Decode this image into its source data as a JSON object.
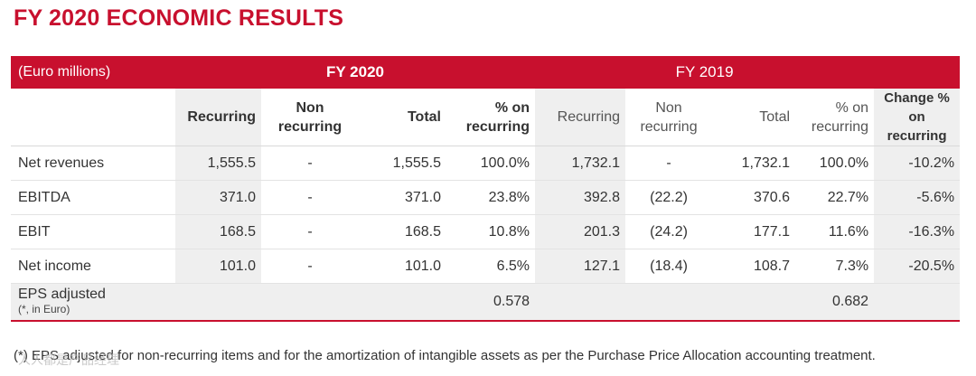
{
  "title": "FY 2020 ECONOMIC RESULTS",
  "table": {
    "unit_label": "(Euro millions)",
    "period_2020": "FY 2020",
    "period_2019": "FY 2019",
    "columns": {
      "recurring": "Recurring",
      "non_line1": "Non",
      "non_line2": "recurring",
      "total": "Total",
      "pct_line1": "% on",
      "pct_line2": "recurring",
      "chg_line1": "Change %",
      "chg_line2": "on",
      "chg_line3": "recurring"
    },
    "rows": [
      {
        "label": "Net revenues",
        "r20": "1,555.5",
        "n20": "-",
        "t20": "1,555.5",
        "p20": "100.0%",
        "r19": "1,732.1",
        "n19": "-",
        "t19": "1,732.1",
        "p19": "100.0%",
        "chg": "-10.2%"
      },
      {
        "label": "EBITDA",
        "r20": "371.0",
        "n20": "-",
        "t20": "371.0",
        "p20": "23.8%",
        "r19": "392.8",
        "n19": "(22.2)",
        "t19": "370.6",
        "p19": "22.7%",
        "chg": "-5.6%"
      },
      {
        "label": "EBIT",
        "r20": "168.5",
        "n20": "-",
        "t20": "168.5",
        "p20": "10.8%",
        "r19": "201.3",
        "n19": "(24.2)",
        "t19": "177.1",
        "p19": "11.6%",
        "chg": "-16.3%"
      },
      {
        "label": "Net income",
        "r20": "101.0",
        "n20": "-",
        "t20": "101.0",
        "p20": "6.5%",
        "r19": "127.1",
        "n19": "(18.4)",
        "t19": "108.7",
        "p19": "7.3%",
        "chg": "-20.5%"
      }
    ],
    "eps": {
      "label": "EPS adjusted",
      "sub": "(*, in Euro)",
      "v20": "0.578",
      "v19": "0.682"
    }
  },
  "footnote": "(*) EPS adjusted for non-recurring items and for the amortization of intangible assets as per the Purchase Price Allocation accounting treatment.",
  "watermark": "人人都是产品经理",
  "colors": {
    "accent": "#c8102e",
    "shade": "#efefef"
  }
}
